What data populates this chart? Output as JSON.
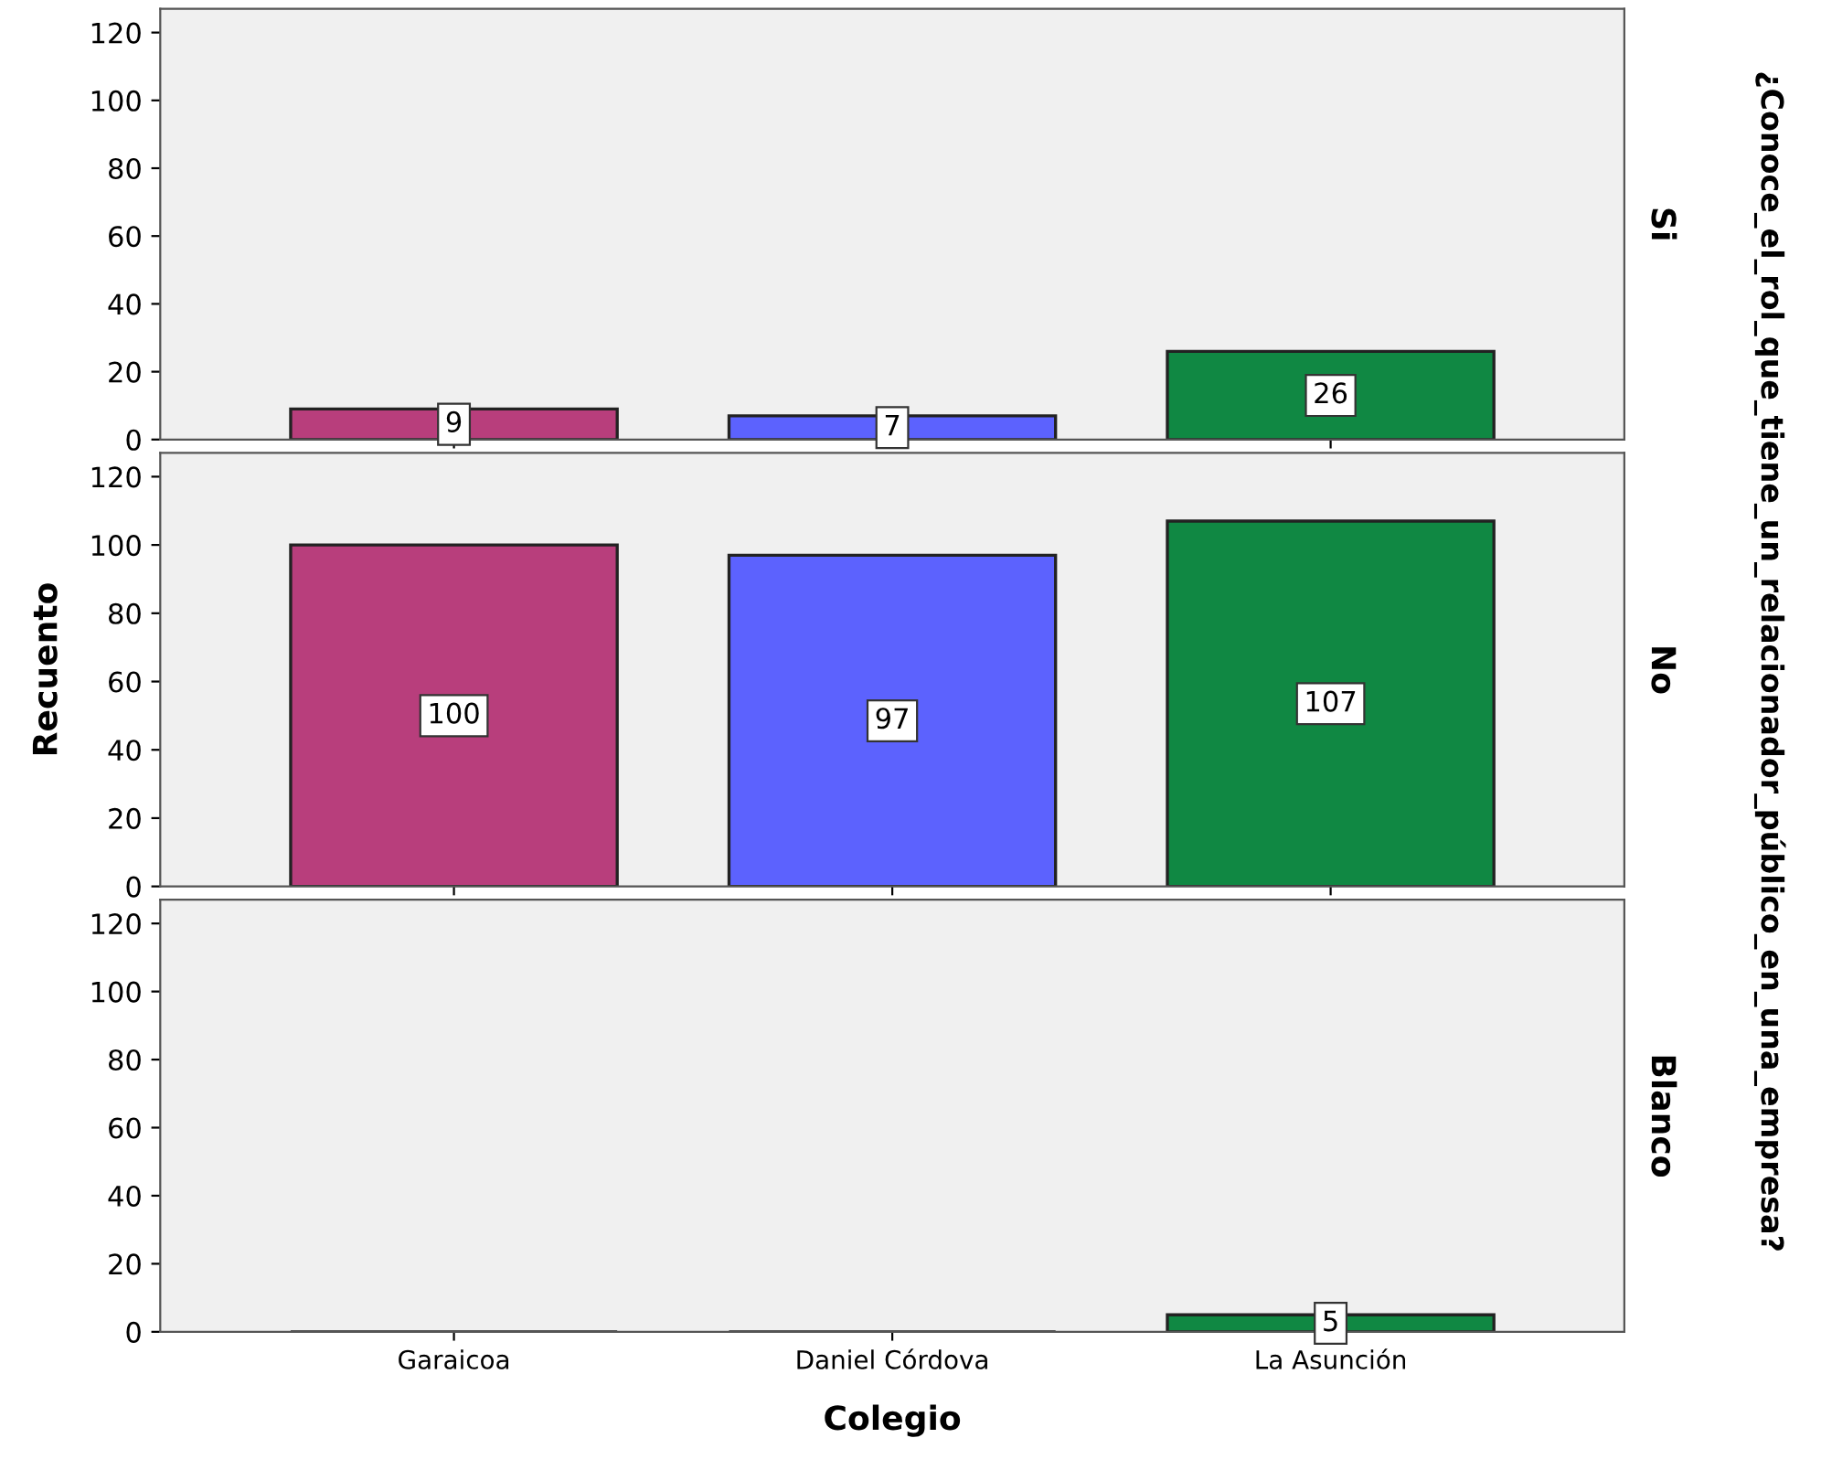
{
  "chart_data": [
    {
      "type": "bar",
      "categories": [
        null,
        null,
        null
      ],
      "values": [
        9,
        7,
        26
      ],
      "colors": [
        "#b83e7c",
        "#5c62fe",
        "#108843"
      ],
      "ylim": [
        0,
        127
      ],
      "yticks": [
        0,
        20,
        40,
        60,
        80,
        100,
        120
      ],
      "y2label": "Si",
      "tick_labels": "y",
      "data_labels": true,
      "annotations": [
        "¿Conoce_el_rol_que_tiene_un_relacionador_público_en_una_empresa?"
      ]
    },
    {
      "type": "bar",
      "categories": [
        null,
        null,
        null
      ],
      "values": [
        100,
        97,
        107
      ],
      "colors": [
        "#b83e7c",
        "#5c62fe",
        "#108843"
      ],
      "ylim": [
        0,
        127
      ],
      "yticks": [
        0,
        20,
        40,
        60,
        80,
        100,
        120
      ],
      "ylabel": "Recuento",
      "y2label": "No",
      "tick_labels": "y",
      "data_labels": true
    },
    {
      "type": "bar",
      "categories": [
        "Garaicoa",
        "Daniel Córdova",
        "La Asunción"
      ],
      "values": [
        0,
        0,
        5
      ],
      "value_labels": [
        null,
        null,
        "5"
      ],
      "colors": [
        "#222222",
        "#222222",
        "#108843"
      ],
      "ylim": [
        0,
        127
      ],
      "yticks": [
        0,
        20,
        40,
        60,
        80,
        100,
        120
      ],
      "xlabel": "Colegio",
      "y2label": "Blanco"
    }
  ]
}
